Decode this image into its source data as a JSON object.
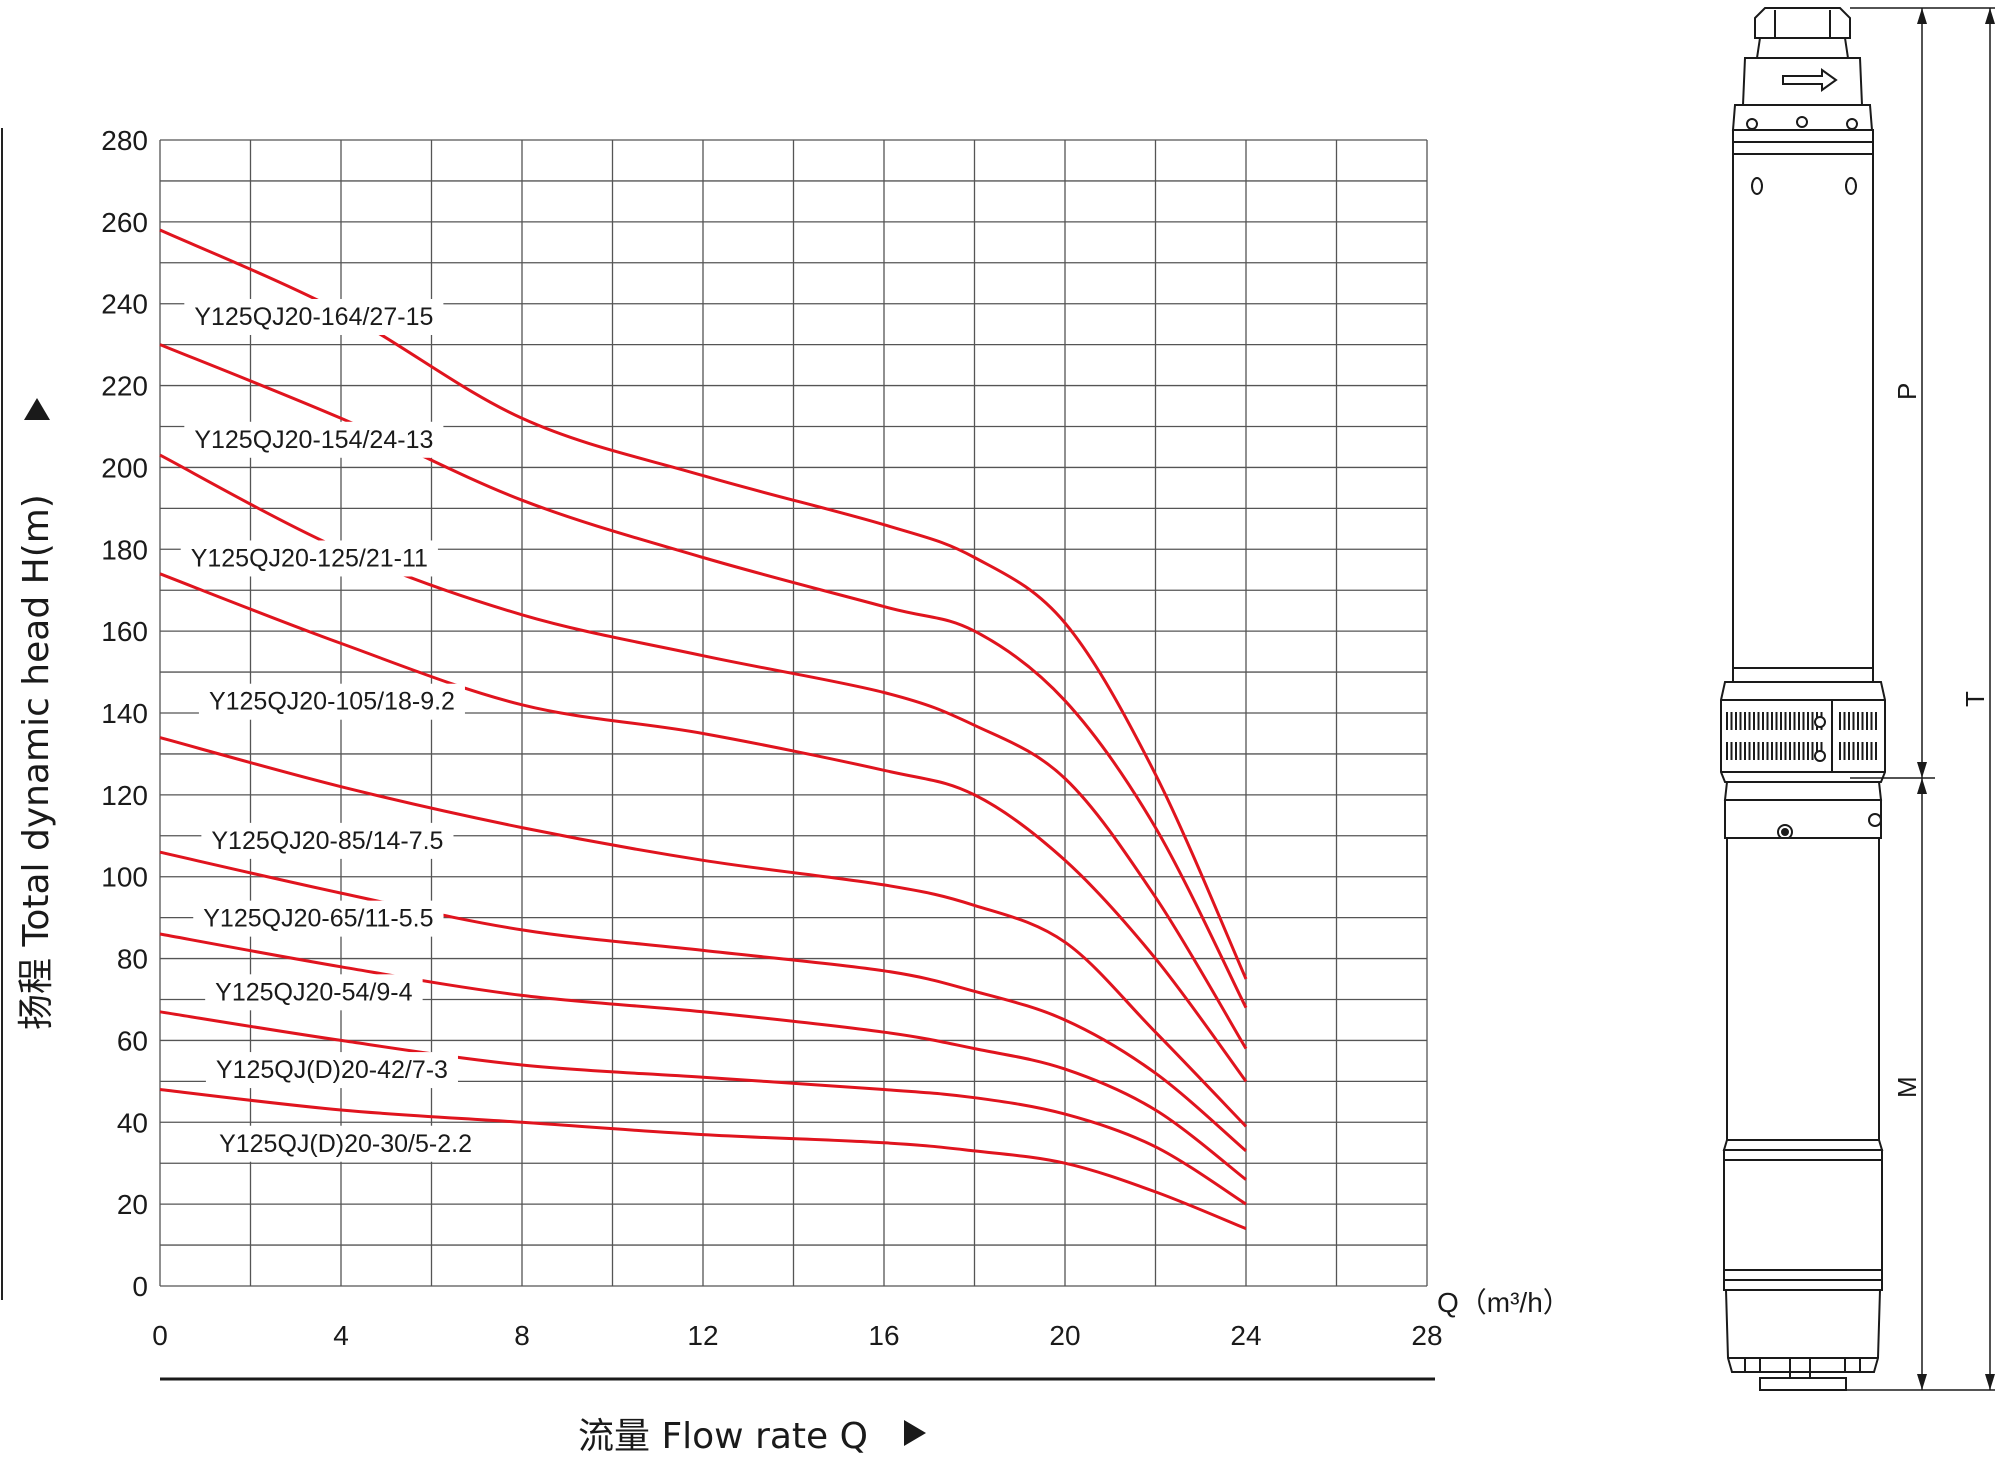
{
  "chart_data": {
    "type": "line",
    "xlabel": "流量 Flow rate Q",
    "ylabel": "扬程 Total dynamic head H(m)",
    "x_unit_label": "Q（m³/h）",
    "xlim": [
      0,
      28
    ],
    "ylim": [
      0,
      280
    ],
    "x_ticks": [
      "0",
      "4",
      "8",
      "12",
      "16",
      "20",
      "24",
      "28"
    ],
    "y_ticks": [
      "0",
      "20",
      "40",
      "60",
      "80",
      "100",
      "120",
      "140",
      "160",
      "180",
      "200",
      "220",
      "240",
      "260",
      "280"
    ],
    "grid": true,
    "series_color": "#e0141e",
    "series": [
      {
        "name": "Y125QJ20-164/27-15",
        "x": [
          0,
          4,
          8,
          12,
          16,
          18,
          20,
          22,
          24
        ],
        "y": [
          258,
          238,
          212,
          198,
          186,
          178,
          162,
          125,
          75
        ]
      },
      {
        "name": "Y125QJ20-154/24-13",
        "x": [
          0,
          4,
          8,
          12,
          16,
          18,
          20,
          22,
          24
        ],
        "y": [
          230,
          212,
          192,
          178,
          166,
          160,
          143,
          112,
          68
        ]
      },
      {
        "name": "Y125QJ20-125/21-11",
        "x": [
          0,
          4,
          8,
          12,
          16,
          18,
          20,
          22,
          24
        ],
        "y": [
          203,
          180,
          164,
          154,
          145,
          137,
          124,
          95,
          58
        ]
      },
      {
        "name": "Y125QJ20-105/18-9.2",
        "x": [
          0,
          4,
          8,
          12,
          16,
          18,
          20,
          22,
          24
        ],
        "y": [
          174,
          157,
          142,
          135,
          126,
          120,
          104,
          80,
          50
        ]
      },
      {
        "name": "Y125QJ20-85/14-7.5",
        "x": [
          0,
          4,
          8,
          12,
          16,
          18,
          20,
          22,
          24
        ],
        "y": [
          134,
          122,
          112,
          104,
          98,
          93,
          84,
          62,
          39
        ]
      },
      {
        "name": "Y125QJ20-65/11-5.5",
        "x": [
          0,
          4,
          8,
          12,
          16,
          18,
          20,
          22,
          24
        ],
        "y": [
          106,
          96,
          87,
          82,
          77,
          72,
          65,
          52,
          33
        ]
      },
      {
        "name": "Y125QJ20-54/9-4",
        "x": [
          0,
          4,
          8,
          12,
          16,
          18,
          20,
          22,
          24
        ],
        "y": [
          86,
          78,
          71,
          67,
          62,
          58,
          53,
          43,
          26
        ]
      },
      {
        "name": "Y125QJ(D)20-42/7-3",
        "x": [
          0,
          4,
          8,
          12,
          16,
          18,
          20,
          22,
          24
        ],
        "y": [
          67,
          60,
          54,
          51,
          48,
          46,
          42,
          34,
          20
        ]
      },
      {
        "name": "Y125QJ(D)20-30/5-2.2",
        "x": [
          0,
          4,
          8,
          12,
          16,
          18,
          20,
          22,
          24
        ],
        "y": [
          48,
          43,
          40,
          37,
          35,
          33,
          30,
          23,
          14
        ]
      }
    ],
    "label_anchor_x": [
      3.4,
      3.4,
      3.3,
      3.8,
      3.7,
      3.5,
      3.4,
      3.8,
      4.1
    ],
    "label_anchor_y": [
      237,
      207,
      178,
      143,
      109,
      90,
      72,
      53,
      35
    ]
  },
  "pump_drawing": {
    "dimension_labels": [
      "P",
      "T",
      "M"
    ]
  }
}
